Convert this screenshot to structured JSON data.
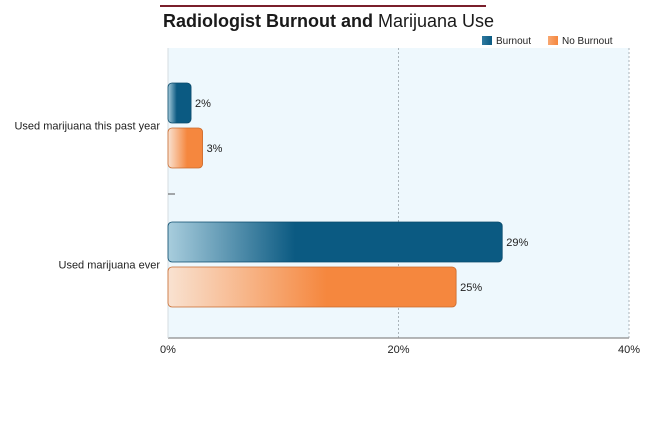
{
  "chart_data": {
    "type": "bar",
    "orientation": "horizontal",
    "title_bold": "Radiologist Burnout and",
    "title_regular": "Marijuana Use",
    "categories": [
      "Used marijuana this past year",
      "Used marijuana ever"
    ],
    "series": [
      {
        "name": "Burnout",
        "values": [
          2,
          29
        ],
        "labels": [
          "2%",
          "29%"
        ],
        "color": "#0b5a82"
      },
      {
        "name": "No Burnout",
        "values": [
          3,
          25
        ],
        "labels": [
          "3%",
          "25%"
        ],
        "color": "#f5873e"
      }
    ],
    "xlim": [
      0,
      40
    ],
    "x_ticks": [
      0,
      20,
      40
    ],
    "x_tick_labels": [
      "0%",
      "20%",
      "40%"
    ],
    "grid": true,
    "legend_position": "top-right",
    "colors": {
      "title_rule": "#7a1f2b",
      "plot_background": "#eef8fd",
      "gridline": "#9aa4aa",
      "axis": "#8c8c8c"
    }
  }
}
